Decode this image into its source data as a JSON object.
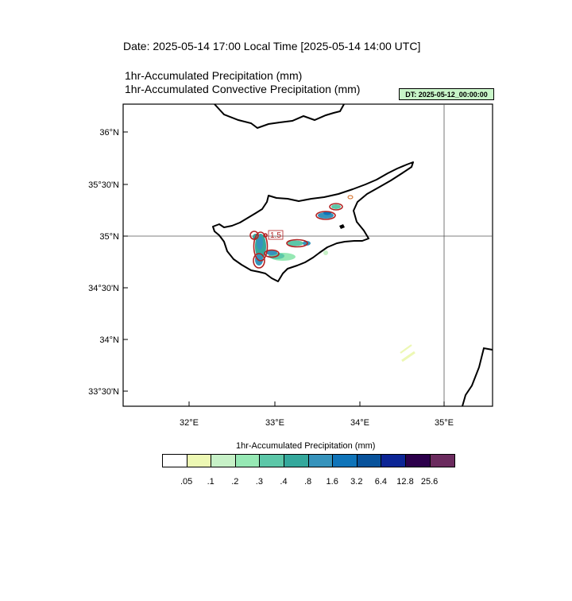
{
  "header": {
    "date_line": "Date: 2025-05-14  17:00 Local Time [2025-05-14  14:00 UTC]",
    "subtitle_1": "1hr-Accumulated Precipitation   (mm)",
    "subtitle_2": "1hr-Accumulated Convective Precipitation   (mm)",
    "dt_badge": "DT: 2025-05-12_00:00:00"
  },
  "map": {
    "lat_labels": [
      "36°N",
      "35°30'N",
      "35°N",
      "34°30'N",
      "34°N",
      "33°30'N"
    ],
    "lon_labels": [
      "32°E",
      "33°E",
      "34°E",
      "35°E"
    ],
    "contour_label": "1.5"
  },
  "colorbar": {
    "title": "1hr-Accumulated Precipitation  (mm)",
    "colors": [
      "#ffffff",
      "#edf8b4",
      "#c7f1c7",
      "#96e8b4",
      "#5cc7a8",
      "#34a89c",
      "#3693bc",
      "#0f74b9",
      "#08529b",
      "#0c2595",
      "#2c004b",
      "#6b2b5e"
    ],
    "labels": [
      ".05",
      ".1",
      ".2",
      ".3",
      ".4",
      ".8",
      "1.6",
      "3.2",
      "6.4",
      "12.8",
      "25.6"
    ]
  }
}
